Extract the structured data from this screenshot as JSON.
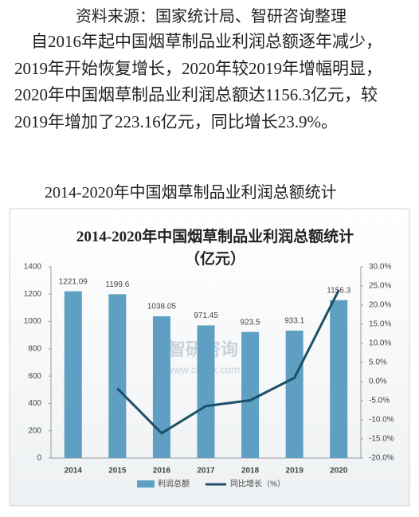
{
  "document": {
    "source": "资料来源：国家统计局、智研咨询整理",
    "paragraph": "自2016年起中国烟草制品业利润总额逐年减少，2019年开始恢复增长，2020年较2019年增幅明显，2020年中国烟草制品业利润总额达1156.3亿元，较2019年增加了223.16亿元，同比增长23.9%。",
    "caption": "2014-2020年中国烟草制品业利润总额统计"
  },
  "chart_data": {
    "type": "bar-line",
    "title": "2014-2020年中国烟草制品业利润总额统计（亿元）",
    "watermark": [
      "智研咨询",
      "www.chyxx.com"
    ],
    "categories": [
      "2014",
      "2015",
      "2016",
      "2017",
      "2018",
      "2019",
      "2020"
    ],
    "series": [
      {
        "name": "利润总额",
        "color": "#5f9fc4",
        "values": [
          1221.09,
          1199.6,
          1038.05,
          971.45,
          923.5,
          933.1,
          1156.3
        ]
      },
      {
        "name": "同比增长（%）",
        "color": "#1d4f66",
        "axis": "y2",
        "values": [
          null,
          -1.8,
          -13.5,
          -6.4,
          -4.9,
          1.0,
          23.9
        ]
      }
    ],
    "ylim": [
      0,
      1400
    ],
    "yticks": [
      0,
      200,
      400,
      600,
      800,
      1000,
      1200,
      1400
    ],
    "y2lim": [
      -20,
      30
    ],
    "y2ticks": [
      {
        "value": -20,
        "label": "-20.0%"
      },
      {
        "value": -15,
        "label": "-15.0%"
      },
      {
        "value": -10,
        "label": "-10.0%"
      },
      {
        "value": -5,
        "label": "-5.0%"
      },
      {
        "value": 0,
        "label": "0.0%"
      },
      {
        "value": 5,
        "label": "5.0%"
      },
      {
        "value": 10,
        "label": "10.0%"
      },
      {
        "value": 15,
        "label": "15.0%"
      },
      {
        "value": 20,
        "label": "20.0%"
      },
      {
        "value": 25,
        "label": "25.0%"
      },
      {
        "value": 30,
        "label": "30.0%"
      }
    ],
    "legend": "bottom"
  }
}
